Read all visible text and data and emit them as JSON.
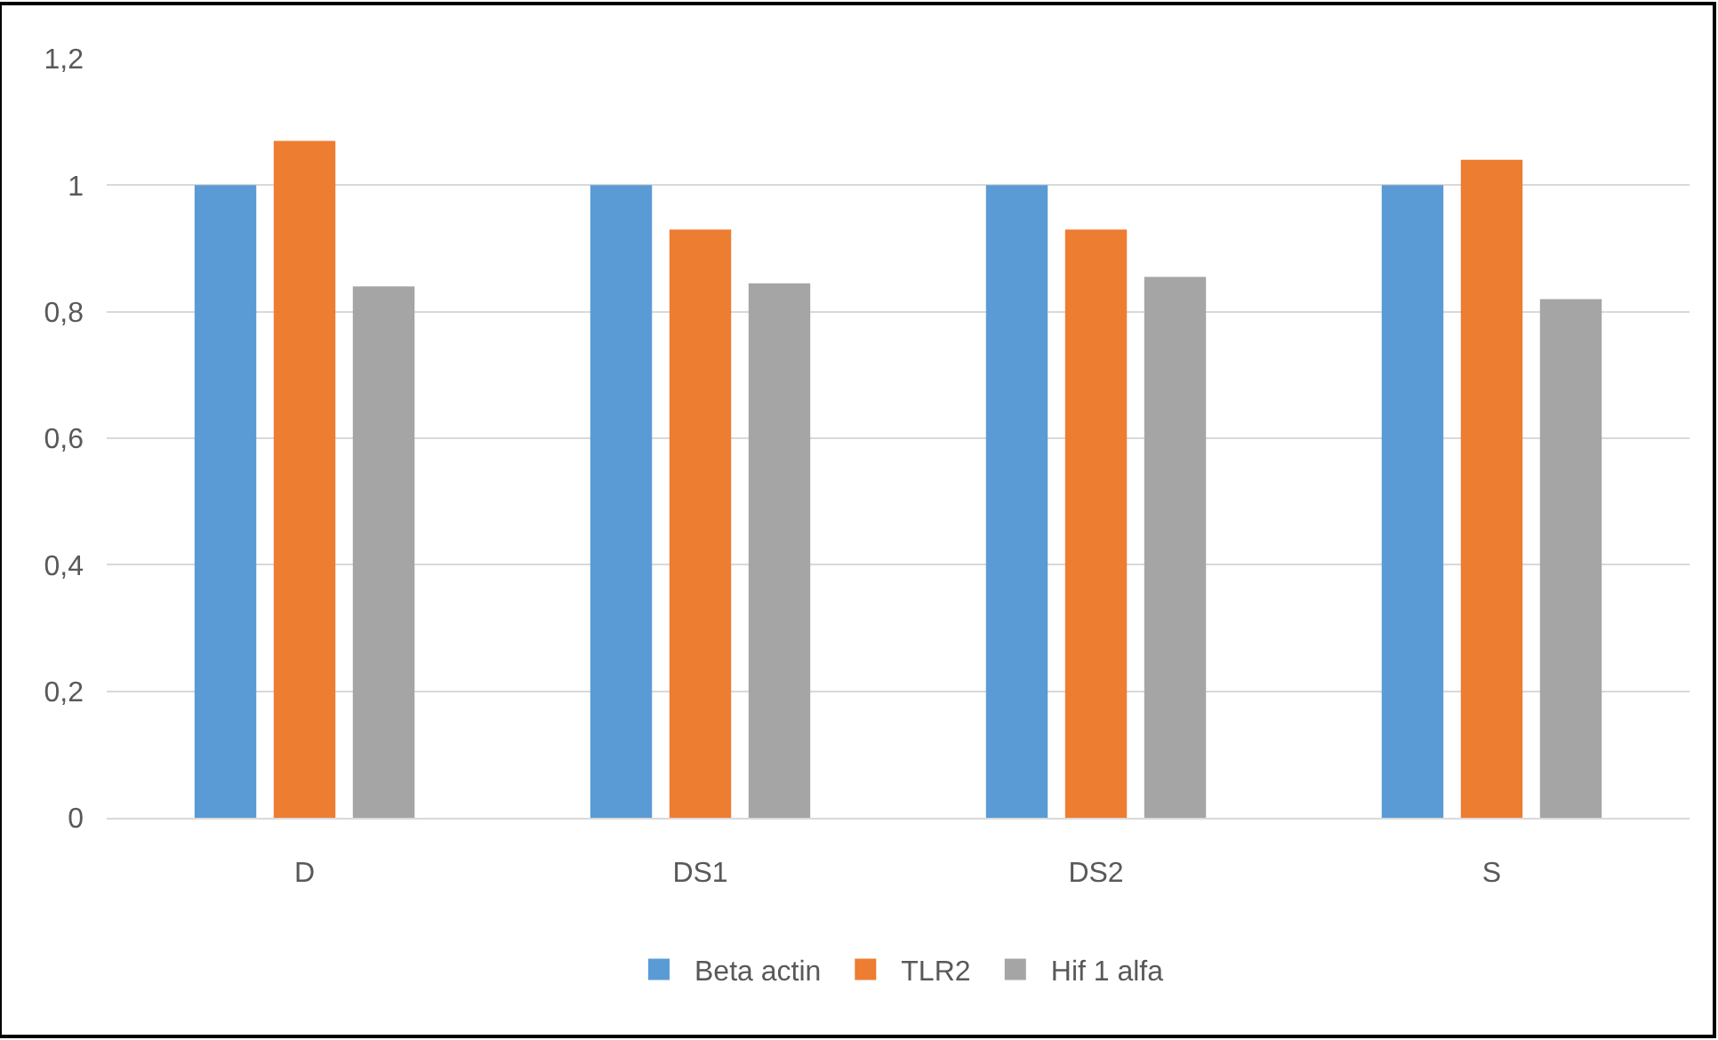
{
  "chart_data": {
    "type": "bar",
    "categories": [
      "D",
      "DS1",
      "DS2",
      "S"
    ],
    "series": [
      {
        "name": "Beta actin",
        "color": "#5b9bd5",
        "values": [
          1,
          1,
          1,
          1
        ]
      },
      {
        "name": "TLR2",
        "color": "#ed7d31",
        "values": [
          1.07,
          0.93,
          0.93,
          1.04
        ]
      },
      {
        "name": "Hif 1 alfa",
        "color": "#a5a5a5",
        "values": [
          0.84,
          0.845,
          0.855,
          0.82
        ]
      }
    ],
    "ylim": [
      0,
      1.2
    ],
    "yticks": [
      0,
      {
        "value": 0.2,
        "label": "0,2"
      },
      {
        "value": 0.4,
        "label": "0,4"
      },
      {
        "value": 0.6,
        "label": "0,6"
      },
      {
        "value": 0.8,
        "label": "0,8"
      },
      1,
      {
        "value": 1.2,
        "label": "1,2"
      }
    ],
    "grid": "y",
    "legend": "bottom"
  }
}
